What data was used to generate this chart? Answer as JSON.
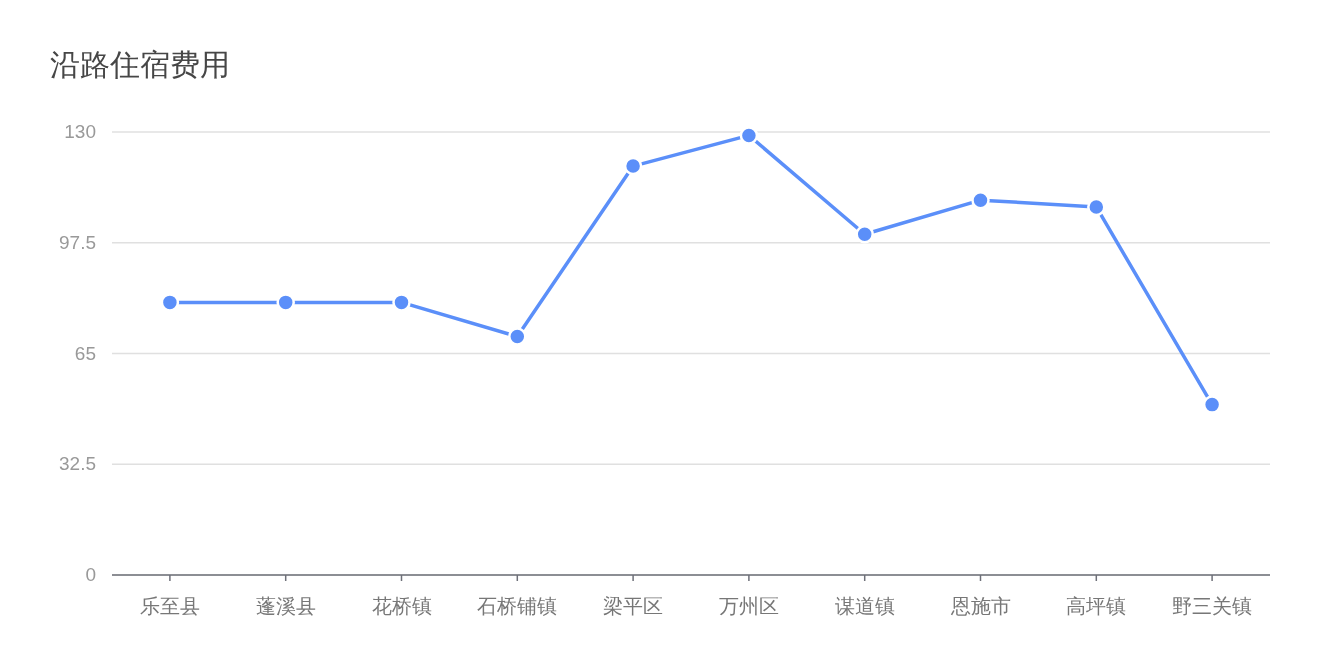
{
  "chart_data": {
    "type": "line",
    "title": "沿路住宿费用",
    "categories": [
      "乐至县",
      "蓬溪县",
      "花桥镇",
      "石桥铺镇",
      "梁平区",
      "万州区",
      "谋道镇",
      "恩施市",
      "高坪镇",
      "野三关镇"
    ],
    "series": [
      {
        "color": "#5b8ff9",
        "values": [
          80,
          80,
          80,
          70,
          120,
          129,
          100,
          110,
          108,
          50
        ]
      }
    ],
    "ylim": [
      0,
      130
    ],
    "yticks": [
      0,
      32.5,
      65,
      97.5,
      130
    ],
    "grid": "y",
    "marker": "circle",
    "line_style": "solid"
  }
}
